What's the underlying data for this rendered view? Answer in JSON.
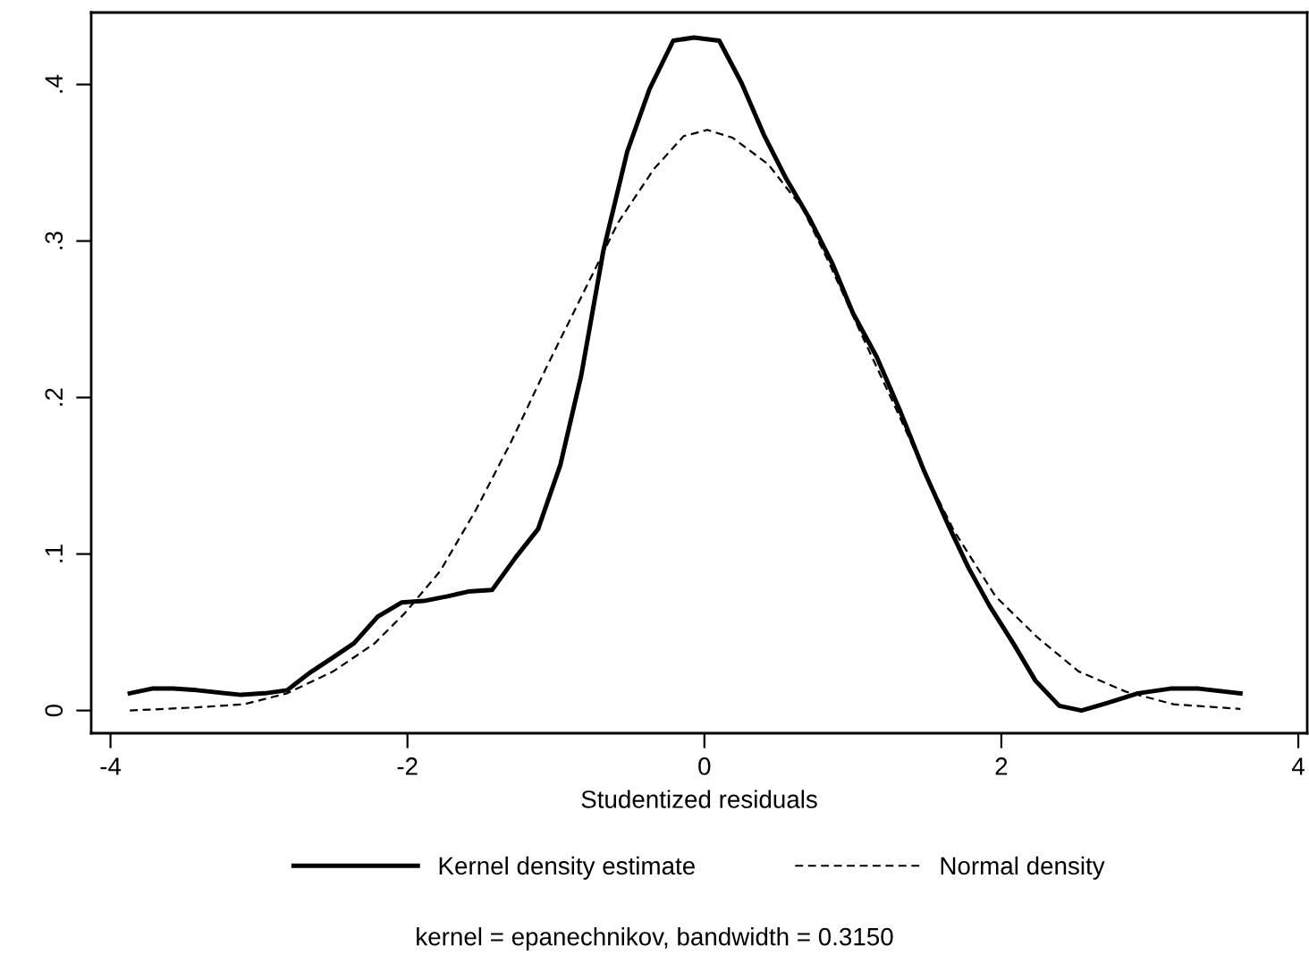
{
  "chart_data": {
    "type": "line",
    "xlabel": "Studentized residuals",
    "annotations": [
      "kernel = epanechnikov, bandwidth = 0.3150"
    ],
    "xlim": [
      -4.13,
      4.06
    ],
    "ylim": [
      -0.0145,
      0.446
    ],
    "xticks": [
      {
        "value": -4,
        "label": "-4"
      },
      {
        "value": -2,
        "label": "-2"
      },
      0,
      2,
      4
    ],
    "yticks": [
      0,
      {
        "value": 0.1,
        "label": ".1"
      },
      {
        "value": 0.2,
        "label": ".2"
      },
      {
        "value": 0.3,
        "label": ".3"
      },
      {
        "value": 0.4,
        "label": ".4"
      }
    ],
    "grid": false,
    "legend": "bottom",
    "series": [
      {
        "name": "Kernel density estimate",
        "color": "#000000",
        "line_style": "solid",
        "x": [
          -3.87,
          -3.72,
          -3.58,
          -3.42,
          -3.12,
          -2.96,
          -2.81,
          -2.66,
          -2.5,
          -2.36,
          -2.2,
          -2.04,
          -1.89,
          -1.73,
          -1.59,
          -1.43,
          -1.27,
          -1.12,
          -0.97,
          -0.83,
          -0.68,
          -0.52,
          -0.37,
          -0.21,
          -0.07,
          0.1,
          0.25,
          0.4,
          0.55,
          0.71,
          0.86,
          1.0,
          1.16,
          1.32,
          1.48,
          1.64,
          1.78,
          1.92,
          2.08,
          2.23,
          2.39,
          2.54,
          2.72,
          2.92,
          3.14,
          3.33,
          3.61
        ],
        "values": [
          0.011,
          0.014,
          0.014,
          0.013,
          0.01,
          0.011,
          0.013,
          0.024,
          0.034,
          0.043,
          0.06,
          0.069,
          0.07,
          0.073,
          0.076,
          0.077,
          0.098,
          0.116,
          0.157,
          0.214,
          0.294,
          0.357,
          0.397,
          0.428,
          0.43,
          0.428,
          0.401,
          0.368,
          0.34,
          0.314,
          0.286,
          0.254,
          0.226,
          0.191,
          0.153,
          0.119,
          0.091,
          0.067,
          0.043,
          0.019,
          0.003,
          0.0,
          0.005,
          0.011,
          0.014,
          0.014,
          0.011
        ]
      },
      {
        "name": "Normal density",
        "color": "#000000",
        "line_style": "dashed",
        "x": [
          -3.87,
          -3.42,
          -3.1,
          -2.81,
          -2.5,
          -2.22,
          -2.02,
          -1.78,
          -1.54,
          -1.3,
          -1.06,
          -0.82,
          -0.58,
          -0.34,
          -0.14,
          0.02,
          0.19,
          0.43,
          0.66,
          0.84,
          1.04,
          1.28,
          1.48,
          1.68,
          1.96,
          2.24,
          2.52,
          2.84,
          3.16,
          3.61
        ],
        "values": [
          0.0,
          0.002,
          0.004,
          0.011,
          0.025,
          0.043,
          0.062,
          0.089,
          0.128,
          0.172,
          0.22,
          0.266,
          0.312,
          0.346,
          0.367,
          0.371,
          0.366,
          0.349,
          0.321,
          0.286,
          0.244,
          0.195,
          0.153,
          0.115,
          0.073,
          0.047,
          0.025,
          0.012,
          0.004,
          0.001
        ]
      }
    ]
  }
}
